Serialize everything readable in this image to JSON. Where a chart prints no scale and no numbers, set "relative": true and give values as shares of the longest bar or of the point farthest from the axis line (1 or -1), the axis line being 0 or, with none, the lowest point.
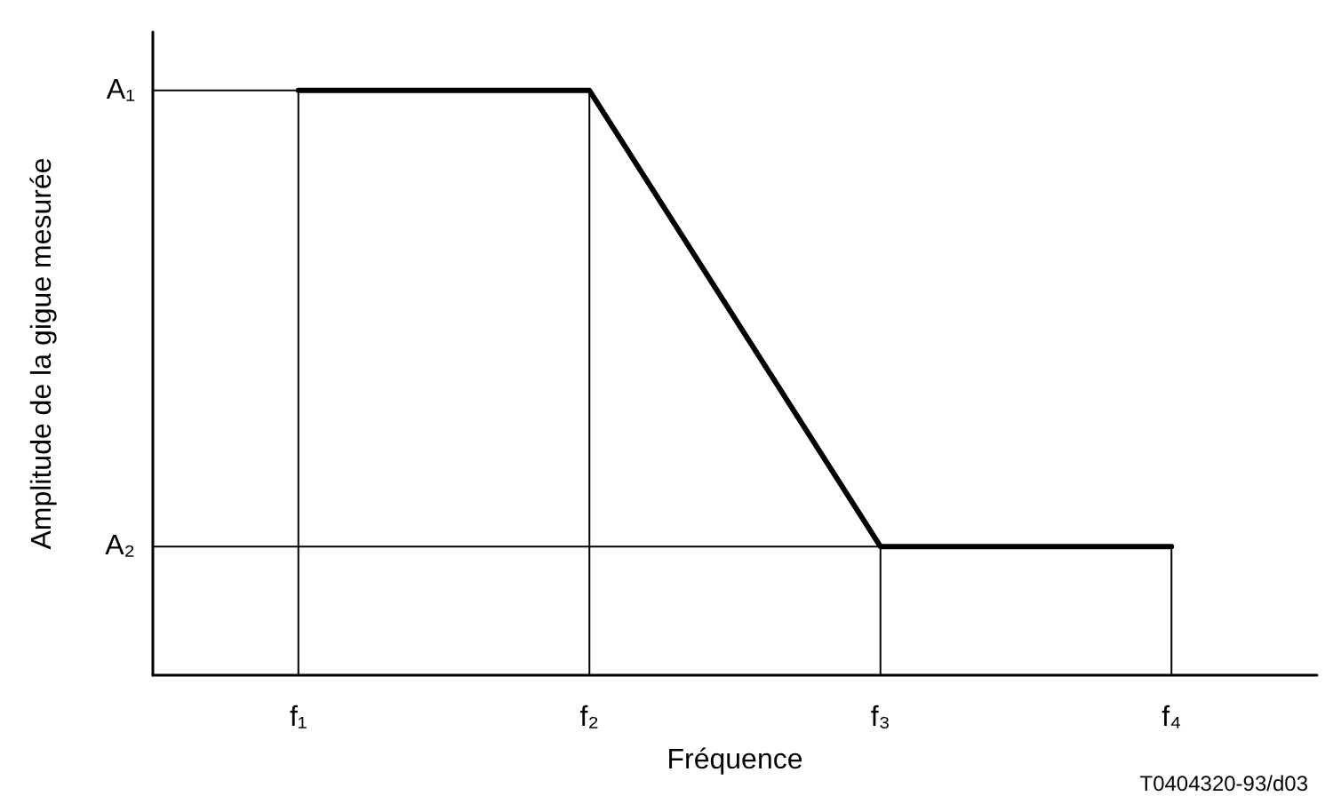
{
  "chart_data": {
    "type": "line",
    "xlabel": "Fréquence",
    "ylabel": "Amplitude de la gigue mesurée",
    "relative": true,
    "categories": [
      "f₁",
      "f₂",
      "f₃",
      "f₄"
    ],
    "series": [
      {
        "color": "#000000",
        "values": [
          1,
          1,
          0.22,
          0.22
        ]
      }
    ],
    "ref_lines": [
      {
        "axis": "x",
        "value": "f₁",
        "color": "#000000"
      },
      {
        "axis": "x",
        "value": "f₂",
        "color": "#000000"
      },
      {
        "axis": "x",
        "value": "f₃",
        "color": "#000000"
      },
      {
        "axis": "x",
        "value": "f₄",
        "color": "#000000"
      },
      {
        "axis": "y",
        "value": 1,
        "color": "#000000",
        "label": "A₁"
      },
      {
        "axis": "y",
        "value": 0.22,
        "color": "#000000",
        "label": "A₂"
      }
    ],
    "annotations": [
      "T0404320-93/d03"
    ],
    "marker": "none",
    "line_style": "solid"
  }
}
